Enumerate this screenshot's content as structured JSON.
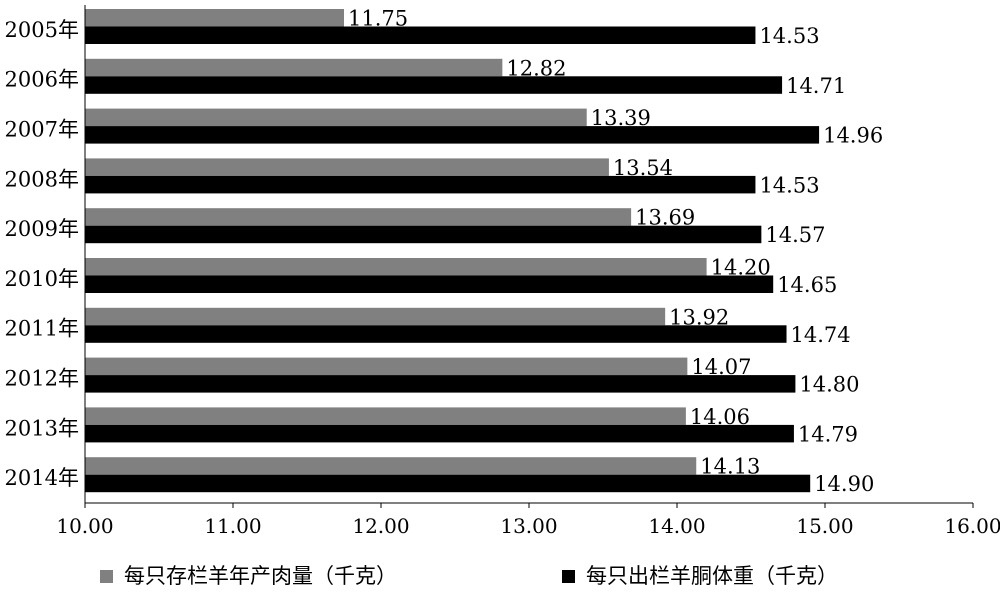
{
  "chart_data": {
    "type": "bar",
    "orientation": "horizontal",
    "categories": [
      "2005年",
      "2006年",
      "2007年",
      "2008年",
      "2009年",
      "2010年",
      "2011年",
      "2012年",
      "2013年",
      "2014年"
    ],
    "series": [
      {
        "name": "每只存栏羊年产肉量（千克）",
        "color": "#808080",
        "values": [
          11.75,
          12.82,
          13.39,
          13.54,
          13.69,
          14.2,
          13.92,
          14.07,
          14.06,
          14.13
        ],
        "labels": [
          "11.75",
          "12.82",
          "13.39",
          "13.54",
          "13.69",
          "14.20",
          "13.92",
          "14.07",
          "14.06",
          "14.13"
        ]
      },
      {
        "name": "每只出栏羊胴体重（千克）",
        "color": "#000000",
        "values": [
          14.53,
          14.71,
          14.96,
          14.53,
          14.57,
          14.65,
          14.74,
          14.8,
          14.79,
          14.9
        ],
        "labels": [
          "14.53",
          "14.71",
          "14.96",
          "14.53",
          "14.57",
          "14.65",
          "14.74",
          "14.80",
          "14.79",
          "14.90"
        ]
      }
    ],
    "xlim": [
      10,
      16
    ],
    "xticks": [
      "10.00",
      "11.00",
      "12.00",
      "13.00",
      "14.00",
      "15.00",
      "16.00"
    ],
    "grid": false,
    "legend_position": "bottom"
  }
}
